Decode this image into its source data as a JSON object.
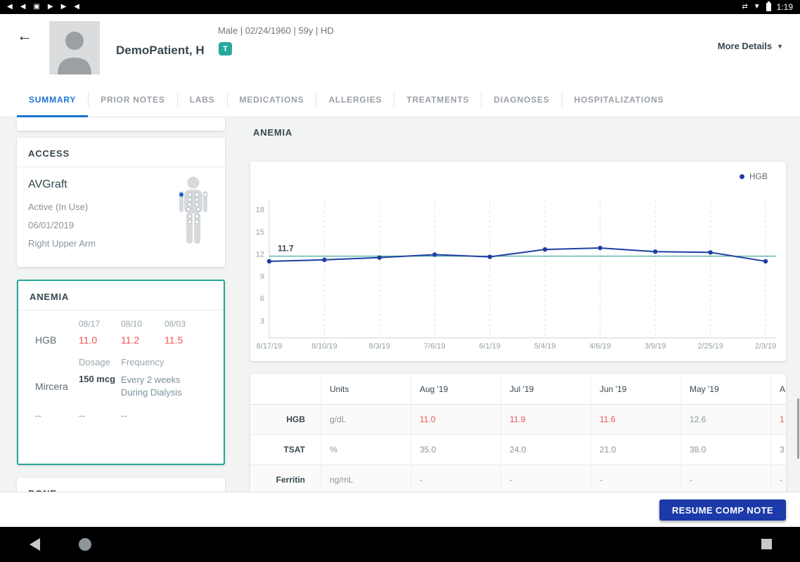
{
  "colors": {
    "teal_accent": "#26a69a",
    "alert_red": "#ef5350",
    "line_blue": "#1e3ea2",
    "tab_blue": "#1976d2",
    "button_blue": "#1c3aa9",
    "reference_teal": "#5fb8ae"
  },
  "status_bar": {
    "time": "1:19",
    "left_icons": [
      {
        "name": "skip-previous-icon",
        "glyph": "◀"
      },
      {
        "name": "rewind-icon",
        "glyph": "◀"
      },
      {
        "name": "screenshot-icon",
        "glyph": "▣"
      },
      {
        "name": "play-icon",
        "glyph": "▶"
      },
      {
        "name": "fast-forward-icon",
        "glyph": "▶"
      },
      {
        "name": "media-icon",
        "glyph": "◀"
      }
    ],
    "network": {
      "name": "network-icon",
      "glyph": "⇄"
    },
    "wifi": {
      "name": "wifi-icon",
      "glyph": "▼"
    },
    "battery": {
      "name": "battery-icon"
    }
  },
  "header": {
    "back_glyph": "←",
    "patient_name": "DemoPatient, H",
    "demographics": "Male | 02/24/1960 | 59y | HD",
    "badge": "T",
    "more_details": "More Details",
    "caret_glyph": "▼"
  },
  "tabs": {
    "active": "SUMMARY",
    "items": [
      "SUMMARY",
      "PRIOR NOTES",
      "LABS",
      "MEDICATIONS",
      "ALLERGIES",
      "TREATMENTS",
      "DIAGNOSES",
      "HOSPITALIZATIONS"
    ]
  },
  "sidebar": {
    "access": {
      "title": "ACCESS",
      "type": "AVGraft",
      "status": "Active (In Use)",
      "date": "06/01/2019",
      "location": "Right Upper Arm"
    },
    "anemia": {
      "title": "ANEMIA",
      "date_headers": [
        "08/17",
        "08/10",
        "08/03"
      ],
      "hgb_label": "HGB",
      "hgb_values": [
        "11.0",
        "11.2",
        "11.5"
      ],
      "dose_header": "Dosage",
      "freq_header": "Frequency",
      "med_name": "Mircera",
      "dose": "150 mcg",
      "frequency": "Every 2 weeks During Dialysis",
      "empty": "--"
    },
    "bone": {
      "title": "BONE"
    }
  },
  "main": {
    "section_title": "ANEMIA",
    "button": "RESUME COMP NOTE"
  },
  "chart_data": {
    "type": "line",
    "title": "ANEMIA",
    "xlabel": "",
    "ylabel": "",
    "x": [
      "8/17/19",
      "8/10/19",
      "8/3/19",
      "7/6/19",
      "6/1/19",
      "5/4/19",
      "4/6/19",
      "3/9/19",
      "2/25/19",
      "2/3/19"
    ],
    "series": [
      {
        "name": "HGB",
        "color": "#1e3ea2",
        "values": [
          11.0,
          11.2,
          11.5,
          11.9,
          11.6,
          12.6,
          12.8,
          12.3,
          12.2,
          11.0
        ]
      }
    ],
    "reference_line": {
      "value": 11.7,
      "label": "11.7",
      "color": "#5fb8ae"
    },
    "yticks": [
      3,
      6,
      9,
      12,
      15,
      18
    ],
    "ylim": [
      0,
      19
    ],
    "grid": "vertical-dashed",
    "legend_position": "top-right"
  },
  "labs_table": {
    "columns": [
      "",
      "Units",
      "Aug '19",
      "Jul '19",
      "Jun '19",
      "May '19",
      "A"
    ],
    "rows": [
      {
        "label": "HGB",
        "units": "g/dL",
        "values": [
          "11.0",
          "11.9",
          "11.6",
          "12.6",
          "1"
        ],
        "red": [
          true,
          true,
          true,
          false,
          true
        ]
      },
      {
        "label": "TSAT",
        "units": "%",
        "values": [
          "35.0",
          "24.0",
          "21.0",
          "38.0",
          "3"
        ],
        "red": [
          false,
          false,
          false,
          false,
          false
        ]
      },
      {
        "label": "Ferritin",
        "units": "ng/mL",
        "values": [
          "-",
          "-",
          "-",
          "-",
          "-"
        ],
        "red": [
          false,
          false,
          false,
          false,
          false
        ]
      }
    ]
  },
  "nav_bar": {
    "back": "nav-back-icon",
    "home": "nav-home-icon",
    "recents": "nav-recents-icon"
  }
}
